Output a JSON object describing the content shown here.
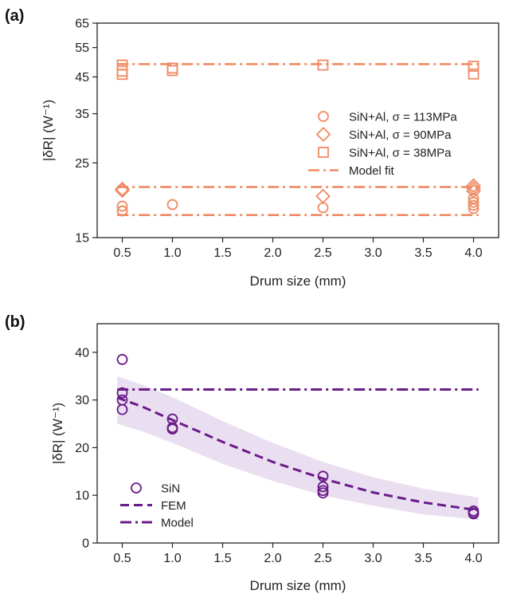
{
  "colors": {
    "orange": "#f08a62",
    "purple": "#6a1b8a",
    "band": "#e6d9ef"
  },
  "chart_data": [
    {
      "panel": "(a)",
      "type": "scatter",
      "xlabel": "Drum size (mm)",
      "ylabel": "|δR| (W⁻¹)",
      "yscale": "log",
      "xlim": [
        0.25,
        4.25
      ],
      "ylim": [
        15,
        65
      ],
      "xticks": [
        "0.5",
        "1.0",
        "1.5",
        "2.0",
        "2.5",
        "3.0",
        "3.5",
        "4.0"
      ],
      "yticks": [
        "15",
        "25",
        "35",
        "45",
        "55",
        "65"
      ],
      "legend_position": "right",
      "series": [
        {
          "name": "SiN+Al, σ = 113MPa",
          "marker": "circle",
          "x": [
            0.5,
            0.5,
            0.5,
            1.0,
            2.5,
            4.0,
            4.0,
            4.0,
            4.0
          ],
          "y": [
            18.0,
            18.6,
            18.0,
            18.8,
            18.4,
            18.3,
            18.7,
            19.1,
            19.6
          ]
        },
        {
          "name": "SiN+Al, σ = 90MPa",
          "marker": "diamond",
          "x": [
            0.5,
            0.5,
            2.5,
            4.0,
            4.0,
            4.0
          ],
          "y": [
            20.7,
            20.9,
            19.9,
            20.6,
            21.0,
            21.4
          ]
        },
        {
          "name": "SiN+Al, σ = 38MPa",
          "marker": "square",
          "x": [
            0.5,
            0.5,
            0.5,
            1.0,
            1.0,
            2.5,
            4.0,
            4.0
          ],
          "y": [
            45.8,
            46.8,
            48.8,
            47.0,
            47.8,
            48.8,
            45.9,
            48.4
          ]
        },
        {
          "name": "Model fit",
          "marker": "dashdot",
          "lines": [
            {
              "x": [
                0.45,
                4.05
              ],
              "y": [
                49.1,
                49.1
              ]
            },
            {
              "x": [
                0.45,
                4.05
              ],
              "y": [
                21.2,
                21.2
              ]
            },
            {
              "x": [
                0.45,
                4.05
              ],
              "y": [
                17.5,
                17.5
              ]
            }
          ]
        }
      ]
    },
    {
      "panel": "(b)",
      "type": "scatter",
      "xlabel": "Drum size (mm)",
      "ylabel": "|δR| (W⁻¹)",
      "xlim": [
        0.25,
        4.25
      ],
      "ylim": [
        0,
        46
      ],
      "xticks": [
        "0.5",
        "1.0",
        "1.5",
        "2.0",
        "2.5",
        "3.0",
        "3.5",
        "4.0"
      ],
      "yticks": [
        "0",
        "10",
        "20",
        "30",
        "40"
      ],
      "legend_position": "lower left",
      "series": [
        {
          "name": "SiN",
          "marker": "circle",
          "x": [
            0.5,
            0.5,
            0.5,
            0.5,
            1.0,
            1.0,
            1.0,
            2.5,
            2.5,
            2.5,
            2.5,
            4.0,
            4.0,
            4.0
          ],
          "y": [
            38.5,
            31.5,
            30.0,
            28.0,
            26.0,
            24.2,
            23.9,
            14.0,
            11.8,
            11.0,
            10.5,
            6.7,
            6.3,
            6.1
          ]
        },
        {
          "name": "FEM",
          "marker": "dashed",
          "x": [
            0.45,
            0.7,
            1.0,
            1.5,
            2.0,
            2.5,
            3.0,
            3.5,
            4.0,
            4.05
          ],
          "y": [
            30.5,
            28.6,
            25.8,
            21.2,
            17.0,
            13.5,
            10.6,
            8.5,
            7.0,
            6.8
          ],
          "band_upper": [
            35.0,
            33.2,
            30.6,
            25.6,
            21.0,
            17.0,
            13.8,
            11.4,
            9.7,
            9.5
          ],
          "band_lower": [
            25.0,
            23.4,
            21.0,
            16.6,
            13.0,
            10.0,
            7.8,
            6.0,
            5.0,
            4.8
          ]
        },
        {
          "name": "Model",
          "marker": "dashdot",
          "x": [
            0.45,
            4.05
          ],
          "y": [
            32.2,
            32.2
          ]
        }
      ]
    }
  ]
}
